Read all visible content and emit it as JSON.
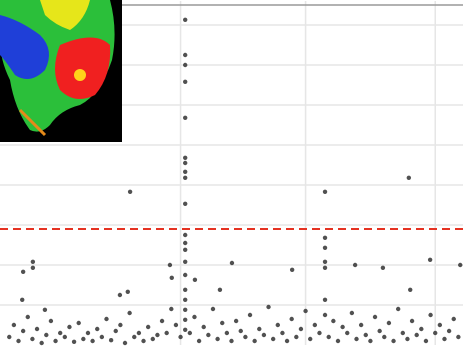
{
  "chart_data": {
    "type": "scatter",
    "x": [
      40,
      40,
      40,
      40,
      40,
      40,
      40,
      40,
      40,
      40,
      40,
      40,
      40,
      40,
      40,
      40,
      40,
      40,
      40,
      40,
      28.1,
      70.2,
      70.2,
      70.2,
      70.2,
      70.2,
      70.2,
      70.2,
      88.3,
      7.1,
      5.0,
      7.1,
      4.8,
      9.7,
      25.9,
      27.6,
      36.7,
      37.1,
      50.1,
      63.1,
      76.7,
      82.7,
      92.9,
      99.4,
      88.6,
      42.1,
      47.5,
      2,
      3,
      4,
      5,
      6,
      7,
      8,
      9,
      10,
      11,
      12,
      13,
      14,
      15,
      16,
      17,
      18,
      19,
      20,
      21,
      22,
      23,
      24,
      25,
      26,
      27,
      28,
      29,
      30,
      31,
      32,
      33,
      34,
      35,
      36,
      37,
      38,
      39,
      41,
      42,
      43,
      44,
      45,
      46,
      47,
      48,
      49,
      50,
      51,
      52,
      53,
      54,
      55,
      56,
      57,
      58,
      59,
      60,
      61,
      62,
      63,
      64,
      65,
      66,
      67,
      68,
      69,
      71,
      72,
      73,
      74,
      75,
      76,
      77,
      78,
      79,
      80,
      81,
      82,
      83,
      84,
      85,
      86,
      87,
      88,
      89,
      90,
      91,
      92,
      93,
      94,
      95,
      96,
      97,
      98,
      99
    ],
    "values": [
      8.13,
      7.25,
      7.0,
      6.58,
      5.68,
      4.68,
      4.55,
      4.33,
      4.18,
      3.53,
      2.75,
      2.55,
      2.38,
      2.08,
      1.75,
      1.38,
      1.13,
      0.88,
      0.63,
      0.38,
      3.83,
      3.83,
      2.68,
      2.43,
      2.08,
      1.93,
      1.13,
      0.75,
      4.18,
      2.08,
      1.83,
      1.93,
      1.13,
      0.88,
      1.25,
      1.33,
      2.0,
      1.68,
      2.05,
      1.88,
      2.0,
      1.93,
      2.13,
      2.0,
      1.38,
      1.63,
      1.38,
      0.2,
      0.5,
      0.1,
      0.35,
      0.7,
      0.15,
      0.4,
      0.05,
      0.25,
      0.6,
      0.1,
      0.3,
      0.2,
      0.45,
      0.08,
      0.55,
      0.15,
      0.3,
      0.1,
      0.4,
      0.2,
      0.65,
      0.12,
      0.35,
      0.5,
      0.05,
      0.8,
      0.2,
      0.3,
      0.1,
      0.45,
      0.15,
      0.25,
      0.6,
      0.3,
      0.9,
      0.5,
      0.2,
      0.3,
      0.7,
      0.1,
      0.45,
      0.25,
      0.9,
      0.15,
      0.55,
      0.3,
      0.1,
      0.6,
      0.35,
      0.2,
      0.75,
      0.1,
      0.4,
      0.25,
      0.95,
      0.15,
      0.5,
      0.3,
      0.1,
      0.65,
      0.2,
      0.4,
      0.85,
      0.15,
      0.5,
      0.3,
      0.2,
      0.6,
      0.1,
      0.45,
      0.3,
      0.8,
      0.15,
      0.5,
      0.25,
      0.1,
      0.7,
      0.35,
      0.2,
      0.55,
      0.1,
      0.9,
      0.3,
      0.15,
      0.6,
      0.25,
      0.4,
      0.1,
      0.75,
      0.3,
      0.5,
      0.15,
      0.35,
      0.65,
      0.2
    ],
    "color": "#333333",
    "xlim": [
      0,
      100
    ],
    "ylim": [
      0,
      8.6
    ],
    "xticks": [
      39,
      66,
      94
    ],
    "yticks": [
      1,
      2,
      3,
      4,
      5,
      6,
      7,
      8
    ],
    "grid": true,
    "threshold": 2.9,
    "threshold_color": "#e53222"
  }
}
